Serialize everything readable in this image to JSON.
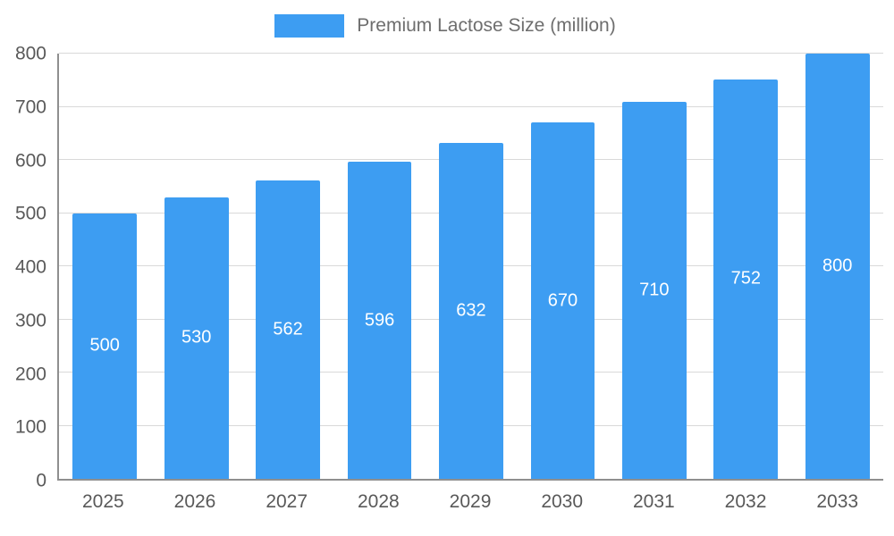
{
  "legend": {
    "label": "Premium Lactose Size (million)"
  },
  "colors": {
    "bar": "#3d9df2",
    "grid": "#d9d9d9",
    "axis": "#8f8f8f",
    "tick_text": "#595959",
    "value_label": "#ffffff"
  },
  "chart_data": {
    "type": "bar",
    "title": "Premium Lactose Size (million)",
    "categories": [
      "2025",
      "2026",
      "2027",
      "2028",
      "2029",
      "2030",
      "2031",
      "2032",
      "2033"
    ],
    "values": [
      500,
      530,
      562,
      596,
      632,
      670,
      710,
      752,
      800
    ],
    "xlabel": "",
    "ylabel": "",
    "ylim": [
      0,
      800
    ],
    "yticks": [
      0,
      100,
      200,
      300,
      400,
      500,
      600,
      700,
      800
    ],
    "grid": true,
    "legend_position": "top",
    "value_labels": "centered-in-bar"
  }
}
